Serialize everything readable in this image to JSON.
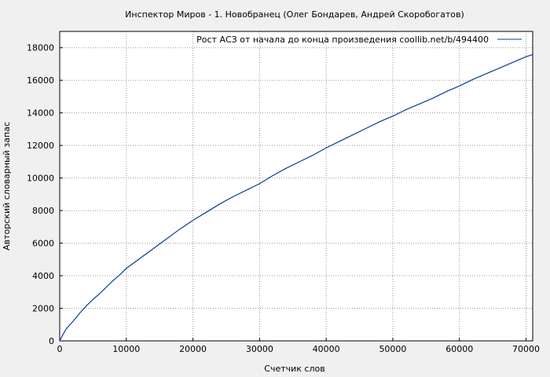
{
  "chart_data": {
    "type": "line",
    "title": "Инспектор Миров - 1. Новобранец (Олег Бондарев, Андрей Скоробогатов)",
    "xlabel": "Счетчик слов",
    "ylabel": "Авторский словарный запас",
    "xlim": [
      0,
      71000
    ],
    "ylim": [
      0,
      19000
    ],
    "x_ticks": [
      0,
      10000,
      20000,
      30000,
      40000,
      50000,
      60000,
      70000
    ],
    "y_ticks": [
      0,
      2000,
      4000,
      6000,
      8000,
      10000,
      12000,
      14000,
      16000,
      18000
    ],
    "grid": true,
    "legend_position": "top-right",
    "series": [
      {
        "name": "Рост АСЗ от начала до конца произведения coollib.net/b/494400",
        "color": "#0a3c96",
        "x": [
          0,
          500,
          1000,
          2000,
          3000,
          4000,
          5000,
          6000,
          7000,
          8000,
          9000,
          10000,
          12000,
          14000,
          16000,
          18000,
          20000,
          22000,
          24000,
          26000,
          28000,
          30000,
          32000,
          34000,
          36000,
          38000,
          40000,
          42000,
          44000,
          46000,
          48000,
          50000,
          52000,
          54000,
          56000,
          58000,
          60000,
          62000,
          64000,
          66000,
          68000,
          70000,
          71000
        ],
        "y": [
          0,
          400,
          750,
          1200,
          1700,
          2150,
          2550,
          2900,
          3300,
          3700,
          4050,
          4450,
          5050,
          5650,
          6250,
          6850,
          7400,
          7900,
          8400,
          8850,
          9250,
          9650,
          10150,
          10600,
          11000,
          11400,
          11850,
          12250,
          12650,
          13050,
          13450,
          13800,
          14200,
          14550,
          14900,
          15300,
          15650,
          16050,
          16400,
          16750,
          17100,
          17450,
          17580
        ]
      }
    ]
  }
}
